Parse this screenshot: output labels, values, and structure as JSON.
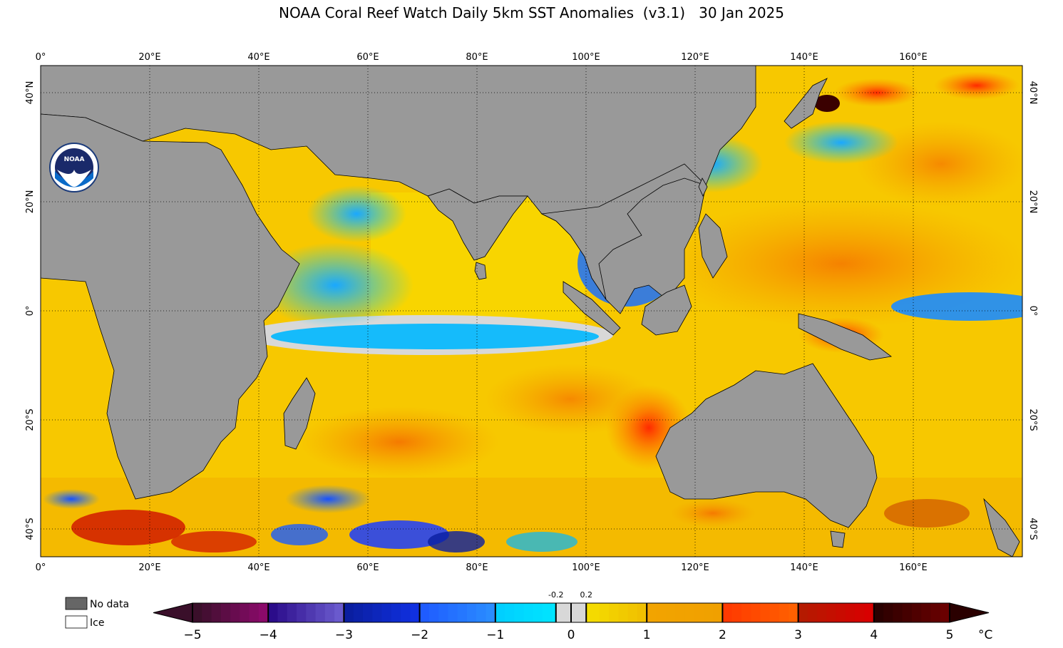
{
  "title": "NOAA Coral Reef Watch Daily 5km SST Anomalies  (v3.1)   30 Jan 2025",
  "map": {
    "lon_ticks": [
      "0°",
      "20°E",
      "40°E",
      "60°E",
      "80°E",
      "100°E",
      "120°E",
      "140°E",
      "160°E"
    ],
    "lat_ticks": [
      "40°N",
      "20°N",
      "0°",
      "20°S",
      "40°S"
    ],
    "land_color": "#999999",
    "logo_text": "NOAA"
  },
  "legend": {
    "no_data_label": "No data",
    "ice_label": "Ice",
    "no_data_color": "#666666",
    "ice_color": "#ffffff"
  },
  "colorbar": {
    "min": -5,
    "max": 5,
    "unit": "°C",
    "tick_labels": [
      "−5",
      "−4",
      "−3",
      "−2",
      "−1",
      "0",
      "1",
      "2",
      "3",
      "4",
      "5"
    ],
    "small_labels": [
      "-0.2",
      "0.2"
    ],
    "colors": {
      "minus5": "#3a0f2a",
      "minus4": "#2b0c8a",
      "minus3": "#0a1ea0",
      "minus2": "#1f5cff",
      "minus1": "#00cfff",
      "zero": "#d8d8d8",
      "plus1": "#f5e400",
      "plus2": "#f2a400",
      "plus3": "#ff3a00",
      "plus4": "#b51a00",
      "plus5": "#2a0000"
    }
  }
}
